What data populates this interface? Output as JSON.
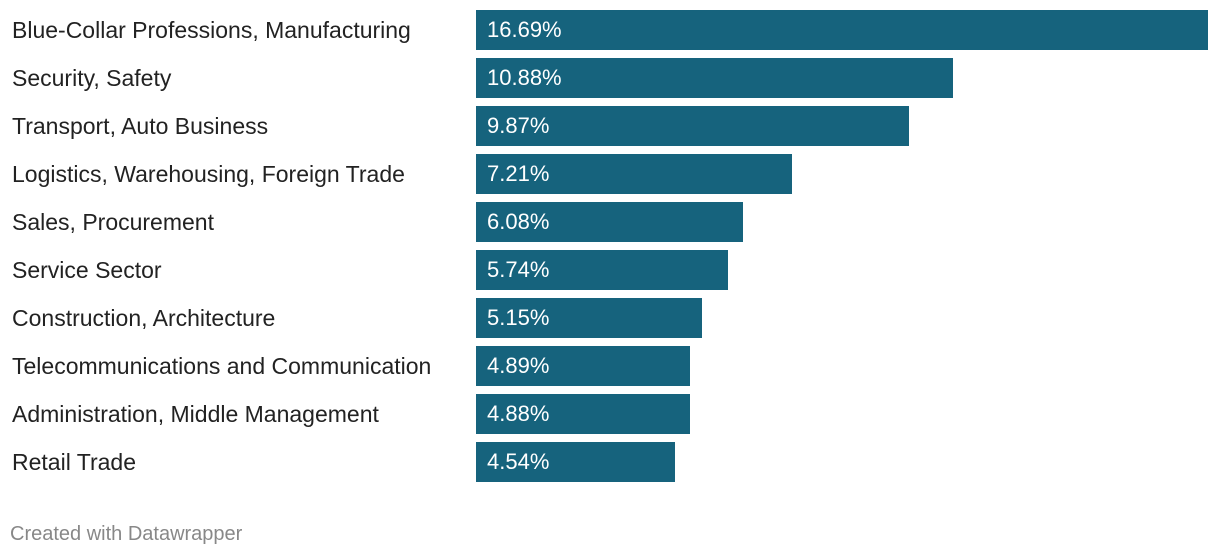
{
  "chart_data": {
    "type": "bar",
    "orientation": "horizontal",
    "categories": [
      "Blue-Collar Professions, Manufacturing",
      "Security, Safety",
      "Transport, Auto Business",
      "Logistics, Warehousing, Foreign Trade",
      "Sales, Procurement",
      "Service Sector",
      "Construction, Architecture",
      "Telecommunications and Communication",
      "Administration, Middle Management",
      "Retail Trade"
    ],
    "values": [
      16.69,
      10.88,
      9.87,
      7.21,
      6.08,
      5.74,
      5.15,
      4.89,
      4.88,
      4.54
    ],
    "value_labels": [
      "16.69%",
      "10.88%",
      "9.87%",
      "7.21%",
      "6.08%",
      "5.74%",
      "5.15%",
      "4.89%",
      "4.88%",
      "4.54%"
    ],
    "xlim": [
      0,
      16.69
    ],
    "bar_color": "#16637d",
    "grid": false,
    "title": "",
    "xlabel": "",
    "ylabel": ""
  },
  "footer": {
    "credit": "Created with Datawrapper"
  }
}
